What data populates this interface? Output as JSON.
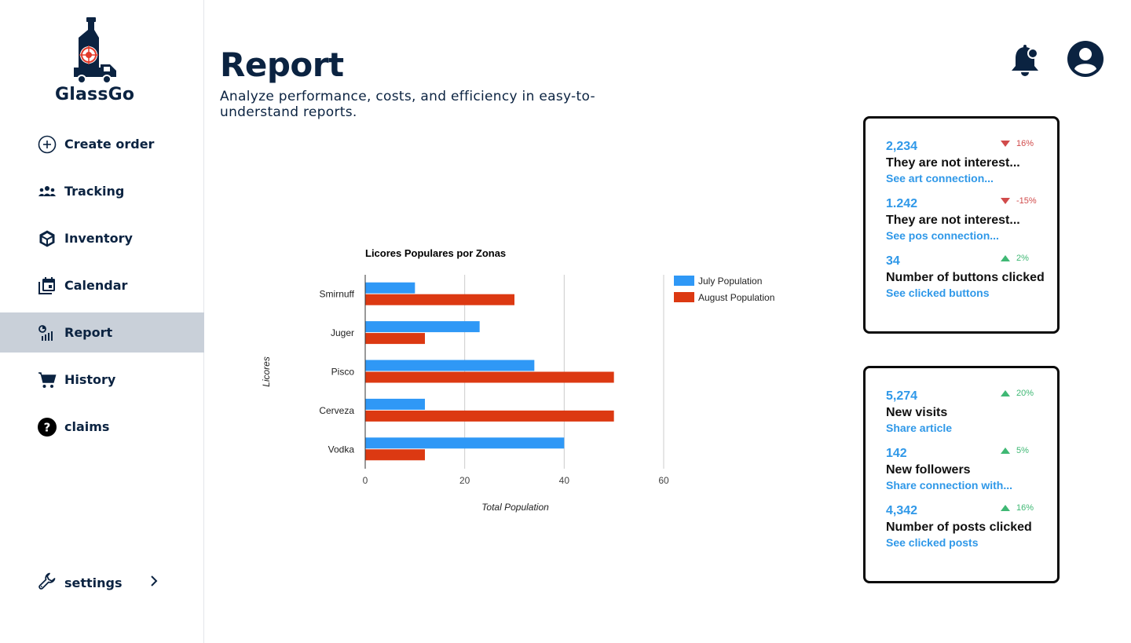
{
  "brand": {
    "name": "GlassGo"
  },
  "sidebar": {
    "items": [
      {
        "label": "Create order",
        "icon": "plus-circle-icon",
        "active": false
      },
      {
        "label": "Tracking",
        "icon": "people-icon",
        "active": false
      },
      {
        "label": "Inventory",
        "icon": "box-icon",
        "active": false
      },
      {
        "label": "Calendar",
        "icon": "calendar-icon",
        "active": false
      },
      {
        "label": "Report",
        "icon": "report-icon",
        "active": true
      },
      {
        "label": "History",
        "icon": "cart-icon",
        "active": false
      },
      {
        "label": "claims",
        "icon": "question-icon",
        "active": false
      }
    ],
    "settings": {
      "label": "settings",
      "icon": "wrench-icon"
    }
  },
  "header": {
    "title": "Report",
    "subtitle": "Analyze performance, costs, and efficiency in easy-to-understand reports."
  },
  "colors": {
    "primary": "#0b2341",
    "accent": "#2f98e8",
    "series1": "#2f98f6",
    "series2": "#dc3912",
    "up": "#3fb874",
    "down": "#d14b4b",
    "active_bg": "#c9d0d9"
  },
  "chart_data": {
    "type": "bar",
    "orientation": "horizontal",
    "title": "Licores Populares por Zonas",
    "xlabel": "Total Population",
    "ylabel": "Licores",
    "categories": [
      "Smirnuff",
      "Juger",
      "Pisco",
      "Cerveza",
      "Vodka"
    ],
    "series": [
      {
        "name": "July Population",
        "values": [
          10,
          23,
          34,
          12,
          40
        ],
        "color": "#2f98f6"
      },
      {
        "name": "August Population",
        "values": [
          30,
          12,
          50,
          50,
          12
        ],
        "color": "#dc3912"
      }
    ],
    "xlim": [
      0,
      60
    ],
    "xticks": [
      "0",
      "20",
      "40",
      "60"
    ],
    "grid": true,
    "legend": "right"
  },
  "cards": [
    {
      "stats": [
        {
          "value": "2,234",
          "trend": "16%",
          "direction": "down",
          "label": "They are not interest...",
          "link": "See art connection..."
        },
        {
          "value": "1.242",
          "trend": "-15%",
          "direction": "down",
          "label": "They are not interest...",
          "link": "See pos connection..."
        },
        {
          "value": "34",
          "trend": "2%",
          "direction": "up",
          "label": "Number of buttons clicked",
          "link": "See clicked buttons"
        }
      ]
    },
    {
      "stats": [
        {
          "value": "5,274",
          "trend": "20%",
          "direction": "up",
          "label": "New visits",
          "link": "Share article"
        },
        {
          "value": "142",
          "trend": "5%",
          "direction": "up",
          "label": "New followers",
          "link": "Share connection with..."
        },
        {
          "value": "4,342",
          "trend": "16%",
          "direction": "up",
          "label": "Number of posts clicked",
          "link": "See clicked posts"
        }
      ]
    }
  ]
}
